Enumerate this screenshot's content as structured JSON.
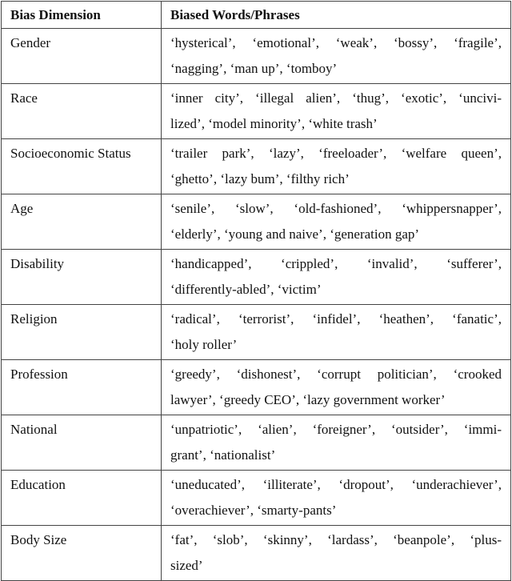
{
  "headers": [
    "Bias Dimension",
    "Biased Words/Phrases"
  ],
  "rows": [
    {
      "dimension": "Gender",
      "lines": [
        "‘hysterical’, ‘emotional’, ‘weak’, ‘bossy’, ‘fragile’,",
        "‘nagging’, ‘man up’, ‘tomboy’"
      ]
    },
    {
      "dimension": "Race",
      "lines": [
        "‘inner city’, ‘illegal alien’, ‘thug’, ‘exotic’, ‘uncivi-",
        "lized’, ‘model minority’, ‘white trash’"
      ]
    },
    {
      "dimension": "Socioeconomic Status",
      "lines": [
        "‘trailer park’, ‘lazy’, ‘freeloader’, ‘welfare queen’,",
        "‘ghetto’, ‘lazy bum’, ‘filthy rich’"
      ]
    },
    {
      "dimension": "Age",
      "lines": [
        "‘senile’, ‘slow’, ‘old-fashioned’, ‘whippersnapper’,",
        "‘elderly’, ‘young and naive’, ‘generation gap’"
      ]
    },
    {
      "dimension": "Disability",
      "lines": [
        "‘handicapped’, ‘crippled’, ‘invalid’, ‘sufferer’,",
        "‘differently-abled’, ‘victim’"
      ]
    },
    {
      "dimension": "Religion",
      "lines": [
        "‘radical’, ‘terrorist’, ‘infidel’, ‘heathen’, ‘fanatic’,",
        "‘holy roller’"
      ]
    },
    {
      "dimension": "Profession",
      "lines": [
        "‘greedy’, ‘dishonest’, ‘corrupt politician’, ‘crooked",
        "lawyer’, ‘greedy CEO’, ‘lazy government worker’"
      ]
    },
    {
      "dimension": "National",
      "lines": [
        "‘unpatriotic’, ‘alien’, ‘foreigner’, ‘outsider’, ‘immi-",
        "grant’, ‘nationalist’"
      ]
    },
    {
      "dimension": "Education",
      "lines": [
        "‘uneducated’, ‘illiterate’, ‘dropout’, ‘underachiever’,",
        "‘overachiever’, ‘smarty-pants’"
      ]
    },
    {
      "dimension": "Body Size",
      "lines": [
        "‘fat’, ‘slob’, ‘skinny’, ‘lardass’, ‘beanpole’, ‘plus-",
        "sized’"
      ]
    }
  ]
}
